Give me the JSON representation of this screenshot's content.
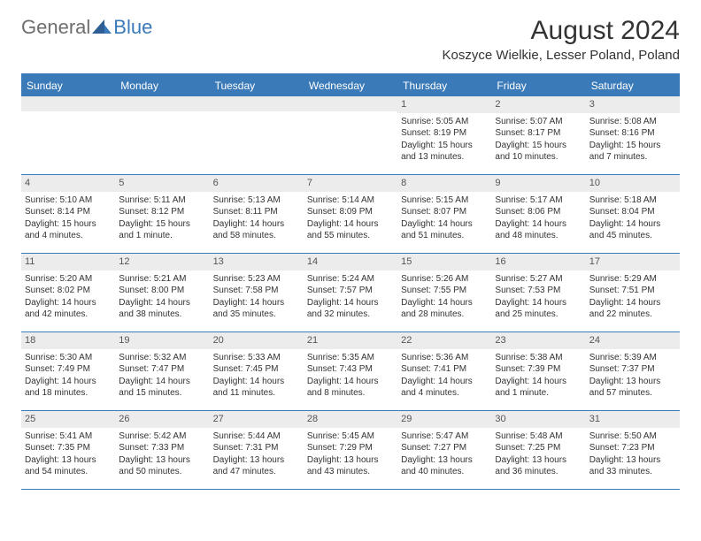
{
  "brand": {
    "part1": "General",
    "part2": "Blue"
  },
  "title": "August 2024",
  "location": "Koszyce Wielkie, Lesser Poland, Poland",
  "colors": {
    "accent": "#3a7ab8",
    "header_bg": "#3a7ab8",
    "daynum_bg": "#ececec",
    "text": "#333333",
    "logo_gray": "#6e6e6e"
  },
  "day_headers": [
    "Sunday",
    "Monday",
    "Tuesday",
    "Wednesday",
    "Thursday",
    "Friday",
    "Saturday"
  ],
  "weeks": [
    [
      {
        "n": "",
        "sunrise": "",
        "sunset": "",
        "daylight": ""
      },
      {
        "n": "",
        "sunrise": "",
        "sunset": "",
        "daylight": ""
      },
      {
        "n": "",
        "sunrise": "",
        "sunset": "",
        "daylight": ""
      },
      {
        "n": "",
        "sunrise": "",
        "sunset": "",
        "daylight": ""
      },
      {
        "n": "1",
        "sunrise": "Sunrise: 5:05 AM",
        "sunset": "Sunset: 8:19 PM",
        "daylight": "Daylight: 15 hours and 13 minutes."
      },
      {
        "n": "2",
        "sunrise": "Sunrise: 5:07 AM",
        "sunset": "Sunset: 8:17 PM",
        "daylight": "Daylight: 15 hours and 10 minutes."
      },
      {
        "n": "3",
        "sunrise": "Sunrise: 5:08 AM",
        "sunset": "Sunset: 8:16 PM",
        "daylight": "Daylight: 15 hours and 7 minutes."
      }
    ],
    [
      {
        "n": "4",
        "sunrise": "Sunrise: 5:10 AM",
        "sunset": "Sunset: 8:14 PM",
        "daylight": "Daylight: 15 hours and 4 minutes."
      },
      {
        "n": "5",
        "sunrise": "Sunrise: 5:11 AM",
        "sunset": "Sunset: 8:12 PM",
        "daylight": "Daylight: 15 hours and 1 minute."
      },
      {
        "n": "6",
        "sunrise": "Sunrise: 5:13 AM",
        "sunset": "Sunset: 8:11 PM",
        "daylight": "Daylight: 14 hours and 58 minutes."
      },
      {
        "n": "7",
        "sunrise": "Sunrise: 5:14 AM",
        "sunset": "Sunset: 8:09 PM",
        "daylight": "Daylight: 14 hours and 55 minutes."
      },
      {
        "n": "8",
        "sunrise": "Sunrise: 5:15 AM",
        "sunset": "Sunset: 8:07 PM",
        "daylight": "Daylight: 14 hours and 51 minutes."
      },
      {
        "n": "9",
        "sunrise": "Sunrise: 5:17 AM",
        "sunset": "Sunset: 8:06 PM",
        "daylight": "Daylight: 14 hours and 48 minutes."
      },
      {
        "n": "10",
        "sunrise": "Sunrise: 5:18 AM",
        "sunset": "Sunset: 8:04 PM",
        "daylight": "Daylight: 14 hours and 45 minutes."
      }
    ],
    [
      {
        "n": "11",
        "sunrise": "Sunrise: 5:20 AM",
        "sunset": "Sunset: 8:02 PM",
        "daylight": "Daylight: 14 hours and 42 minutes."
      },
      {
        "n": "12",
        "sunrise": "Sunrise: 5:21 AM",
        "sunset": "Sunset: 8:00 PM",
        "daylight": "Daylight: 14 hours and 38 minutes."
      },
      {
        "n": "13",
        "sunrise": "Sunrise: 5:23 AM",
        "sunset": "Sunset: 7:58 PM",
        "daylight": "Daylight: 14 hours and 35 minutes."
      },
      {
        "n": "14",
        "sunrise": "Sunrise: 5:24 AM",
        "sunset": "Sunset: 7:57 PM",
        "daylight": "Daylight: 14 hours and 32 minutes."
      },
      {
        "n": "15",
        "sunrise": "Sunrise: 5:26 AM",
        "sunset": "Sunset: 7:55 PM",
        "daylight": "Daylight: 14 hours and 28 minutes."
      },
      {
        "n": "16",
        "sunrise": "Sunrise: 5:27 AM",
        "sunset": "Sunset: 7:53 PM",
        "daylight": "Daylight: 14 hours and 25 minutes."
      },
      {
        "n": "17",
        "sunrise": "Sunrise: 5:29 AM",
        "sunset": "Sunset: 7:51 PM",
        "daylight": "Daylight: 14 hours and 22 minutes."
      }
    ],
    [
      {
        "n": "18",
        "sunrise": "Sunrise: 5:30 AM",
        "sunset": "Sunset: 7:49 PM",
        "daylight": "Daylight: 14 hours and 18 minutes."
      },
      {
        "n": "19",
        "sunrise": "Sunrise: 5:32 AM",
        "sunset": "Sunset: 7:47 PM",
        "daylight": "Daylight: 14 hours and 15 minutes."
      },
      {
        "n": "20",
        "sunrise": "Sunrise: 5:33 AM",
        "sunset": "Sunset: 7:45 PM",
        "daylight": "Daylight: 14 hours and 11 minutes."
      },
      {
        "n": "21",
        "sunrise": "Sunrise: 5:35 AM",
        "sunset": "Sunset: 7:43 PM",
        "daylight": "Daylight: 14 hours and 8 minutes."
      },
      {
        "n": "22",
        "sunrise": "Sunrise: 5:36 AM",
        "sunset": "Sunset: 7:41 PM",
        "daylight": "Daylight: 14 hours and 4 minutes."
      },
      {
        "n": "23",
        "sunrise": "Sunrise: 5:38 AM",
        "sunset": "Sunset: 7:39 PM",
        "daylight": "Daylight: 14 hours and 1 minute."
      },
      {
        "n": "24",
        "sunrise": "Sunrise: 5:39 AM",
        "sunset": "Sunset: 7:37 PM",
        "daylight": "Daylight: 13 hours and 57 minutes."
      }
    ],
    [
      {
        "n": "25",
        "sunrise": "Sunrise: 5:41 AM",
        "sunset": "Sunset: 7:35 PM",
        "daylight": "Daylight: 13 hours and 54 minutes."
      },
      {
        "n": "26",
        "sunrise": "Sunrise: 5:42 AM",
        "sunset": "Sunset: 7:33 PM",
        "daylight": "Daylight: 13 hours and 50 minutes."
      },
      {
        "n": "27",
        "sunrise": "Sunrise: 5:44 AM",
        "sunset": "Sunset: 7:31 PM",
        "daylight": "Daylight: 13 hours and 47 minutes."
      },
      {
        "n": "28",
        "sunrise": "Sunrise: 5:45 AM",
        "sunset": "Sunset: 7:29 PM",
        "daylight": "Daylight: 13 hours and 43 minutes."
      },
      {
        "n": "29",
        "sunrise": "Sunrise: 5:47 AM",
        "sunset": "Sunset: 7:27 PM",
        "daylight": "Daylight: 13 hours and 40 minutes."
      },
      {
        "n": "30",
        "sunrise": "Sunrise: 5:48 AM",
        "sunset": "Sunset: 7:25 PM",
        "daylight": "Daylight: 13 hours and 36 minutes."
      },
      {
        "n": "31",
        "sunrise": "Sunrise: 5:50 AM",
        "sunset": "Sunset: 7:23 PM",
        "daylight": "Daylight: 13 hours and 33 minutes."
      }
    ]
  ]
}
